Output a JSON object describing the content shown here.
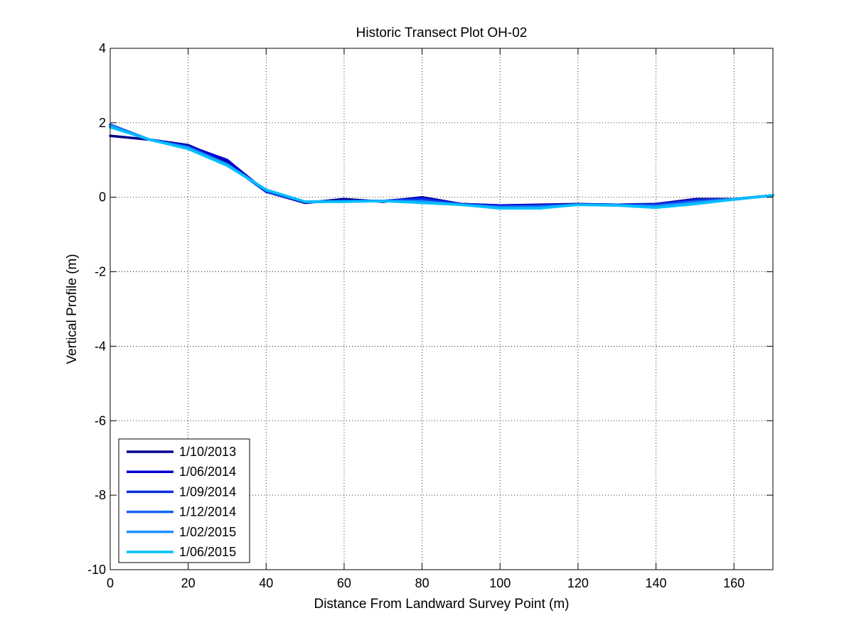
{
  "chart_data": {
    "type": "line",
    "title": "Historic Transect Plot OH-02",
    "xlabel": "Distance From Landward Survey Point (m)",
    "ylabel": "Vertical Profile (m)",
    "xlim": [
      0,
      170
    ],
    "ylim": [
      -10,
      4
    ],
    "xticks": [
      0,
      20,
      40,
      60,
      80,
      100,
      120,
      140,
      160
    ],
    "yticks": [
      -10,
      -8,
      -6,
      -4,
      -2,
      0,
      2,
      4
    ],
    "xtick_labels": [
      "0",
      "20",
      "40",
      "60",
      "80",
      "100",
      "120",
      "140",
      "160"
    ],
    "ytick_labels": [
      "-10",
      "-8",
      "-6",
      "-4",
      "-2",
      "0",
      "2",
      "4"
    ],
    "grid": true,
    "legend_position": "bottom-left",
    "x": [
      0,
      10,
      20,
      30,
      40,
      50,
      60,
      70,
      80,
      90,
      100,
      110,
      120,
      130,
      140,
      150,
      160,
      170
    ],
    "series": [
      {
        "name": "1/10/2013",
        "color": "#00008b",
        "values": [
          1.65,
          1.55,
          1.4,
          0.95,
          0.15,
          -0.15,
          -0.05,
          -0.12,
          0.0,
          -0.18,
          -0.22,
          -0.2,
          -0.18,
          -0.2,
          -0.18,
          -0.05,
          -0.05,
          0.05
        ]
      },
      {
        "name": "1/06/2014",
        "color": "#0000cd",
        "values": [
          1.9,
          1.55,
          1.38,
          1.0,
          0.15,
          -0.13,
          -0.1,
          -0.1,
          -0.02,
          -0.18,
          -0.22,
          -0.21,
          -0.19,
          -0.2,
          -0.19,
          -0.07,
          -0.06,
          0.05
        ]
      },
      {
        "name": "1/09/2014",
        "color": "#0a2fe0",
        "values": [
          1.95,
          1.55,
          1.35,
          0.9,
          0.15,
          -0.13,
          -0.1,
          -0.1,
          -0.05,
          -0.18,
          -0.24,
          -0.22,
          -0.19,
          -0.2,
          -0.2,
          -0.08,
          -0.05,
          0.05
        ]
      },
      {
        "name": "1/12/2014",
        "color": "#1464f0",
        "values": [
          1.95,
          1.55,
          1.35,
          0.88,
          0.18,
          -0.12,
          -0.1,
          -0.1,
          -0.1,
          -0.2,
          -0.26,
          -0.25,
          -0.2,
          -0.2,
          -0.23,
          -0.12,
          -0.05,
          0.05
        ]
      },
      {
        "name": "1/02/2015",
        "color": "#1e90ff",
        "values": [
          1.92,
          1.55,
          1.32,
          0.88,
          0.2,
          -0.12,
          -0.12,
          -0.1,
          -0.12,
          -0.2,
          -0.28,
          -0.28,
          -0.2,
          -0.22,
          -0.25,
          -0.15,
          -0.05,
          0.05
        ]
      },
      {
        "name": "1/06/2015",
        "color": "#00bfff",
        "values": [
          1.88,
          1.55,
          1.3,
          0.85,
          0.2,
          -0.12,
          -0.12,
          -0.1,
          -0.15,
          -0.2,
          -0.3,
          -0.3,
          -0.2,
          -0.22,
          -0.28,
          -0.18,
          -0.06,
          0.05
        ]
      }
    ]
  }
}
